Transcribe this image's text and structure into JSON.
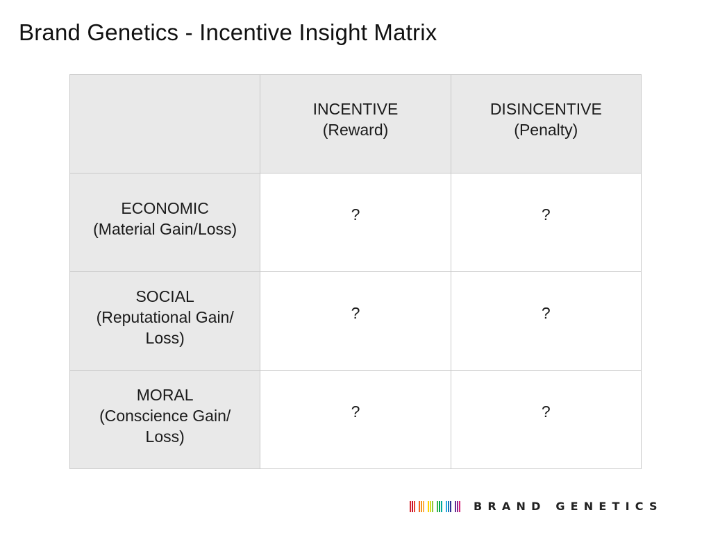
{
  "slide": {
    "title": "Brand Genetics - Incentive Insight Matrix"
  },
  "matrix": {
    "columns": [
      {
        "line1": "INCENTIVE",
        "line2": "(Reward)"
      },
      {
        "line1": "DISINCENTIVE",
        "line2": "(Penalty)"
      }
    ],
    "rows": [
      {
        "lines": [
          "ECONOMIC",
          "(Material Gain/Loss)"
        ],
        "cells": [
          "?",
          "?"
        ]
      },
      {
        "lines": [
          "SOCIAL",
          "(Reputational Gain/",
          "Loss)"
        ],
        "cells": [
          "?",
          "?"
        ]
      },
      {
        "lines": [
          "MORAL",
          "(Conscience Gain/",
          "Loss)"
        ],
        "cells": [
          "?",
          "?"
        ]
      }
    ]
  },
  "logo": {
    "text": "BRAND GENETICS",
    "bar_colors": [
      "#d7262e",
      "#c8102e",
      "#e8412c",
      "#f26522",
      "#f7941d",
      "#fbb040",
      "#ffd200",
      "#d7df23",
      "#8dc63f",
      "#39b54a",
      "#00a651",
      "#00a99d",
      "#27aae1",
      "#1c75bc",
      "#2e3192",
      "#662d91",
      "#92278f",
      "#d6237a"
    ]
  }
}
